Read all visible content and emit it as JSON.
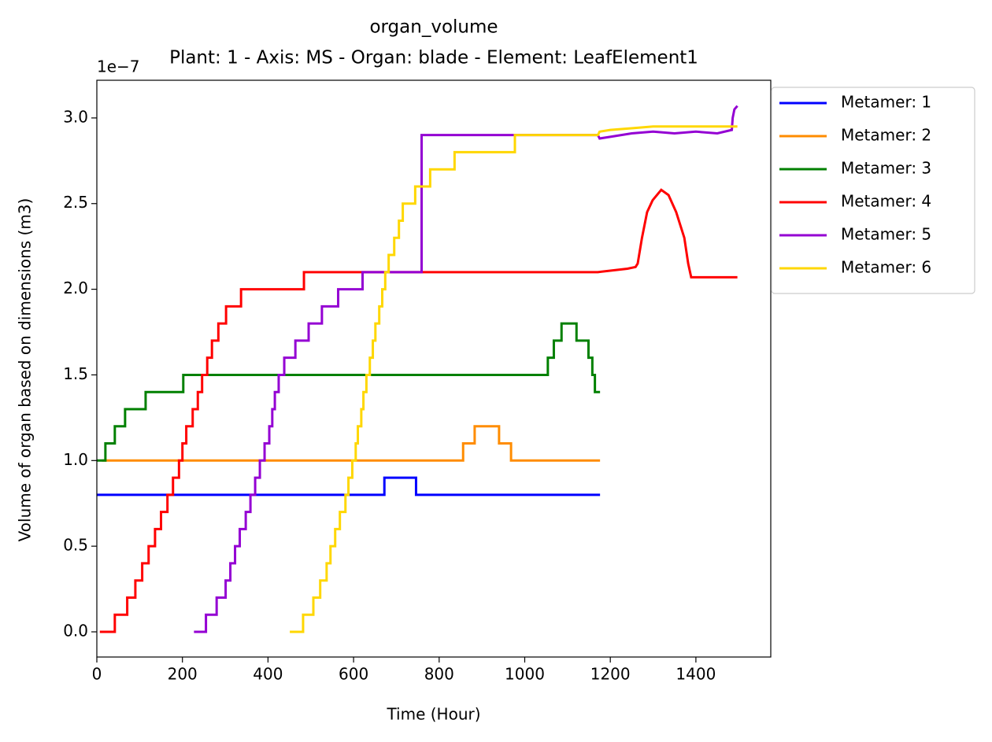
{
  "chart_data": {
    "type": "line",
    "title": "organ_volume",
    "subtitle": "Plant: 1 - Axis: MS - Organ: blade - Element: LeafElement1",
    "x_label": "Time (Hour)",
    "y_label": "Volume of organ based on dimensions (m3)",
    "y_offset_label": "1e−7",
    "xlim": [
      0,
      1575
    ],
    "ylim": [
      -0.147,
      3.22
    ],
    "xticks": [
      0,
      200,
      400,
      600,
      800,
      1000,
      1200,
      1400
    ],
    "yticks": [
      {
        "value": 0,
        "label": "0.0"
      },
      {
        "value": 0.5,
        "label": "0.5"
      },
      {
        "value": 1,
        "label": "1.0"
      },
      {
        "value": 1.5,
        "label": "1.5"
      },
      {
        "value": 2,
        "label": "2.0"
      },
      {
        "value": 2.5,
        "label": "2.5"
      },
      {
        "value": 3,
        "label": "3.0"
      }
    ],
    "grid": false,
    "legend": "outside",
    "series": [
      {
        "name": "Metamer: 1",
        "color": "#0000ff",
        "x": [
          0,
          672,
          672,
          746,
          746,
          1176
        ],
        "values": [
          0.8,
          0.8,
          0.9,
          0.9,
          0.8,
          0.8
        ]
      },
      {
        "name": "Metamer: 2",
        "color": "#ff8c00",
        "x": [
          12,
          856,
          856,
          883,
          883,
          940,
          940,
          968,
          968,
          1176
        ],
        "values": [
          1,
          1,
          1.1,
          1.1,
          1.2,
          1.2,
          1.1,
          1.1,
          1,
          1
        ]
      },
      {
        "name": "Metamer: 3",
        "color": "#008000",
        "x": [
          0,
          20,
          20,
          42,
          42,
          66,
          66,
          114,
          114,
          202,
          202,
          1054,
          1054,
          1068,
          1068,
          1086,
          1086,
          1121,
          1121,
          1149,
          1149,
          1158,
          1158,
          1164,
          1164,
          1176
        ],
        "values": [
          1,
          1,
          1.1,
          1.1,
          1.2,
          1.2,
          1.3,
          1.3,
          1.4,
          1.4,
          1.5,
          1.5,
          1.6,
          1.6,
          1.7,
          1.7,
          1.8,
          1.8,
          1.7,
          1.7,
          1.6,
          1.6,
          1.5,
          1.5,
          1.4,
          1.4
        ]
      },
      {
        "name": "Metamer: 4",
        "color": "#ff0000",
        "x": [
          7,
          42,
          42,
          71,
          71,
          90,
          90,
          106,
          106,
          121,
          121,
          136,
          136,
          150,
          150,
          165,
          165,
          178,
          178,
          192,
          192,
          200,
          200,
          209,
          209,
          224,
          224,
          236,
          236,
          246,
          246,
          258,
          258,
          269,
          269,
          284,
          284,
          302,
          302,
          337,
          337,
          484,
          484,
          1171,
          1240,
          1259,
          1264,
          1274,
          1286,
          1299,
          1319,
          1336,
          1354,
          1373,
          1382,
          1389,
          1497
        ],
        "values": [
          0,
          0,
          0.1,
          0.1,
          0.2,
          0.2,
          0.3,
          0.3,
          0.4,
          0.4,
          0.5,
          0.5,
          0.6,
          0.6,
          0.7,
          0.7,
          0.8,
          0.8,
          0.9,
          0.9,
          1.0,
          1.0,
          1.1,
          1.1,
          1.2,
          1.2,
          1.3,
          1.3,
          1.4,
          1.4,
          1.5,
          1.5,
          1.6,
          1.6,
          1.7,
          1.7,
          1.8,
          1.8,
          1.9,
          1.9,
          2.0,
          2.0,
          2.1,
          2.1,
          2.12,
          2.13,
          2.15,
          2.3,
          2.45,
          2.52,
          2.58,
          2.55,
          2.45,
          2.3,
          2.15,
          2.07,
          2.07
        ]
      },
      {
        "name": "Metamer: 5",
        "color": "#9400d3",
        "x": [
          227,
          255,
          255,
          280,
          280,
          301,
          301,
          312,
          312,
          323,
          323,
          334,
          334,
          348,
          348,
          359,
          359,
          370,
          370,
          381,
          381,
          392,
          392,
          403,
          403,
          410,
          410,
          416,
          416,
          425,
          425,
          438,
          438,
          464,
          464,
          495,
          495,
          526,
          526,
          564,
          564,
          621,
          621,
          759,
          759,
          1171,
          1175,
          1200,
          1250,
          1300,
          1350,
          1400,
          1450,
          1484,
          1486,
          1490,
          1497
        ],
        "values": [
          0,
          0,
          0.1,
          0.1,
          0.2,
          0.2,
          0.3,
          0.3,
          0.4,
          0.4,
          0.5,
          0.5,
          0.6,
          0.6,
          0.7,
          0.7,
          0.8,
          0.8,
          0.9,
          0.9,
          1.0,
          1.0,
          1.1,
          1.1,
          1.2,
          1.2,
          1.3,
          1.3,
          1.4,
          1.4,
          1.5,
          1.5,
          1.6,
          1.6,
          1.7,
          1.7,
          1.8,
          1.8,
          1.9,
          1.9,
          2.0,
          2.0,
          2.1,
          2.1,
          2.9,
          2.9,
          2.88,
          2.89,
          2.91,
          2.92,
          2.91,
          2.92,
          2.91,
          2.93,
          3.0,
          3.05,
          3.07
        ]
      },
      {
        "name": "Metamer: 6",
        "color": "#ffd700",
        "x": [
          451,
          482,
          482,
          506,
          506,
          522,
          522,
          537,
          537,
          546,
          546,
          557,
          557,
          568,
          568,
          581,
          581,
          588,
          588,
          597,
          597,
          605,
          605,
          610,
          610,
          618,
          618,
          623,
          623,
          630,
          630,
          638,
          638,
          645,
          645,
          651,
          651,
          660,
          660,
          667,
          667,
          674,
          674,
          682,
          682,
          695,
          695,
          706,
          706,
          715,
          715,
          744,
          744,
          779,
          779,
          836,
          836,
          977,
          977,
          1171,
          1175,
          1200,
          1250,
          1300,
          1400,
          1497
        ],
        "values": [
          0,
          0,
          0.1,
          0.1,
          0.2,
          0.2,
          0.3,
          0.3,
          0.4,
          0.4,
          0.5,
          0.5,
          0.6,
          0.6,
          0.7,
          0.7,
          0.8,
          0.8,
          0.9,
          0.9,
          1.0,
          1.0,
          1.1,
          1.1,
          1.2,
          1.2,
          1.3,
          1.3,
          1.4,
          1.4,
          1.5,
          1.5,
          1.6,
          1.6,
          1.7,
          1.7,
          1.8,
          1.8,
          1.9,
          1.9,
          2.0,
          2.0,
          2.1,
          2.1,
          2.2,
          2.2,
          2.3,
          2.3,
          2.4,
          2.4,
          2.5,
          2.5,
          2.6,
          2.6,
          2.7,
          2.7,
          2.8,
          2.8,
          2.9,
          2.9,
          2.92,
          2.93,
          2.94,
          2.95,
          2.95,
          2.95
        ]
      }
    ]
  }
}
